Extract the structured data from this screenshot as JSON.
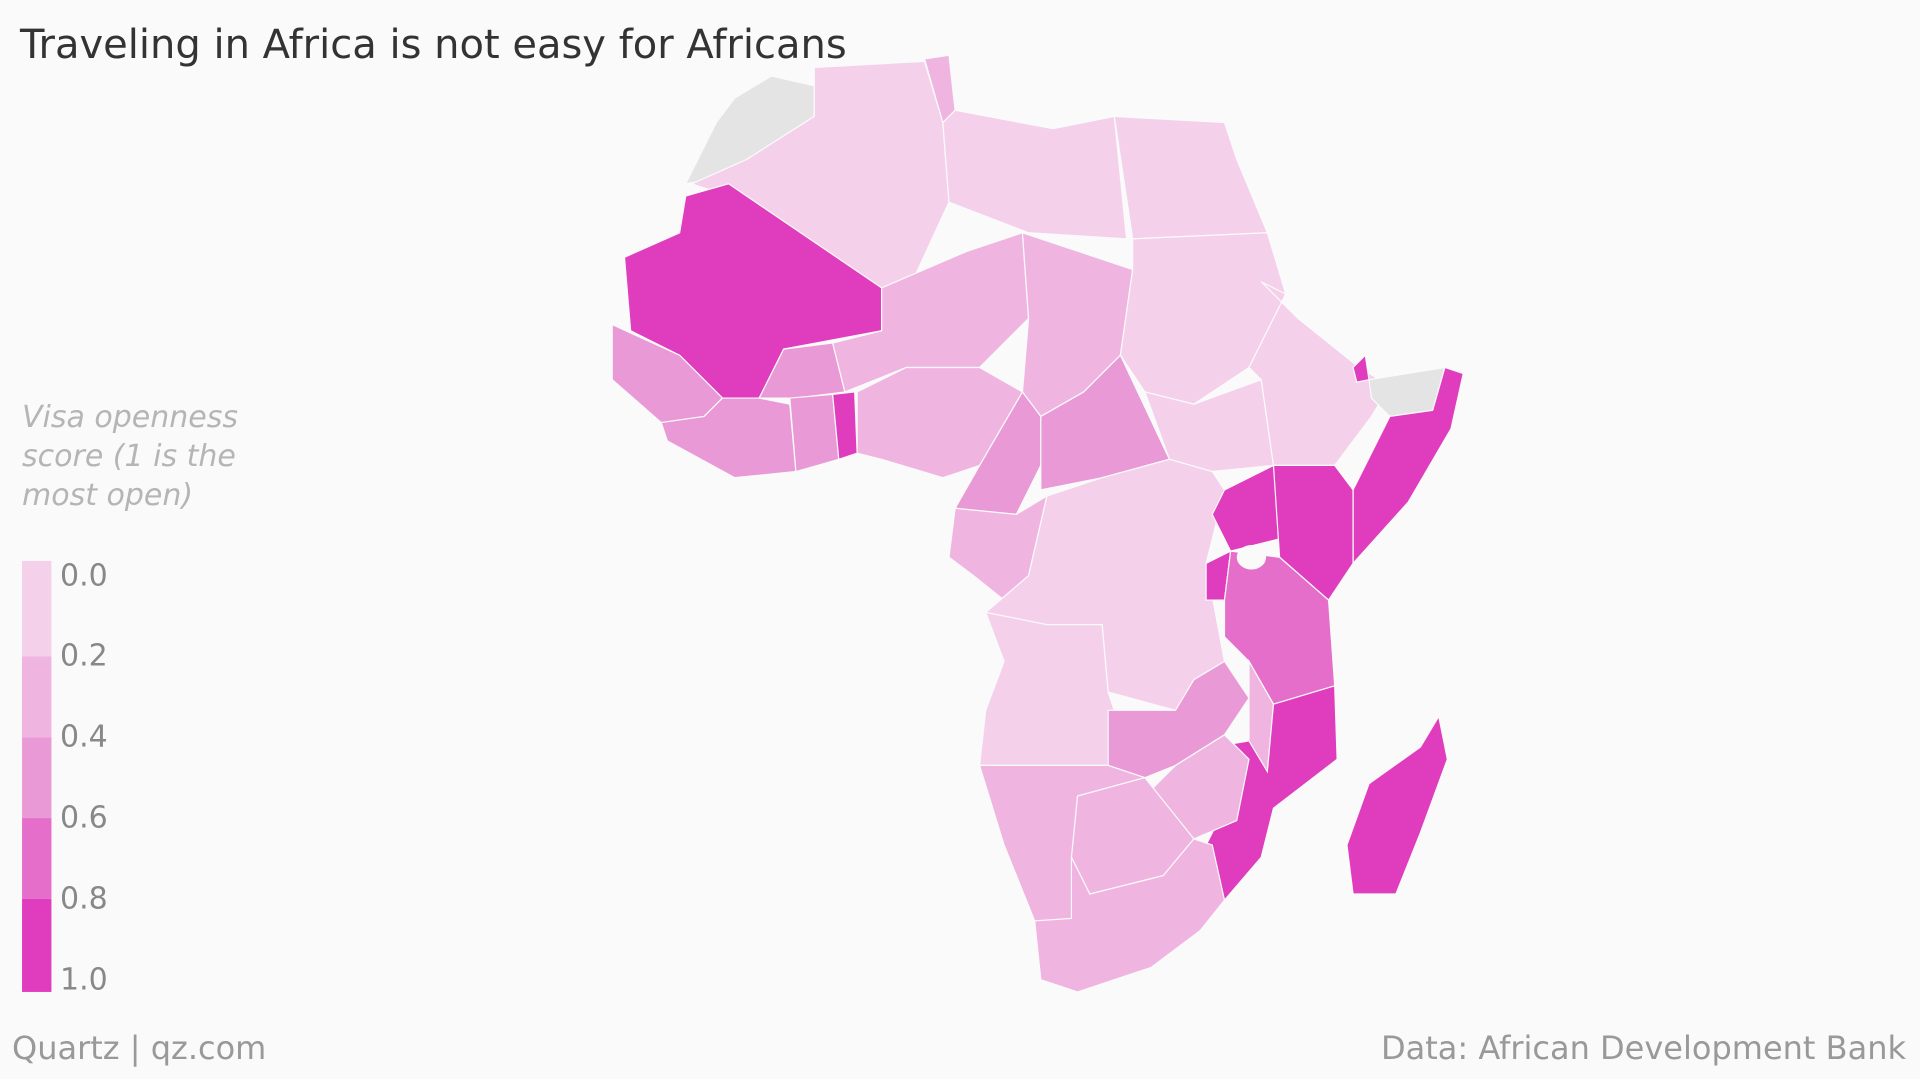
{
  "title": "Traveling in Africa is not easy for Africans",
  "legend": {
    "title": "Visa openness score (1 is the most open)",
    "ticks": [
      {
        "value": 0,
        "label": "0.0"
      },
      0.2,
      0.4,
      0.6,
      0.8,
      {
        "value": 1,
        "label": "1.0"
      }
    ],
    "colors": [
      "#f4d0eb",
      "#efb4e0",
      "#e999d6",
      "#e46ec9",
      "#df3dbd"
    ],
    "no_data_color": "#e4e4e4"
  },
  "map": {
    "values": [
      null,
      0.1,
      0.3,
      0.1,
      0.1,
      0.9,
      0.5,
      0.5,
      0.5,
      0.5,
      0.9,
      0.3,
      0.3,
      0.3,
      0.1,
      0.1,
      0.1,
      0.9,
      null,
      0.9,
      0.5,
      0.5,
      0.3,
      0.1,
      0.9,
      0.9,
      0.9,
      0.7,
      0.1,
      0.5,
      0.3,
      0.9,
      0.3,
      0.3,
      0.3,
      0.3,
      0.9
    ]
  },
  "credit": "Quartz | qz.com",
  "source": "Data: African Development Bank"
}
